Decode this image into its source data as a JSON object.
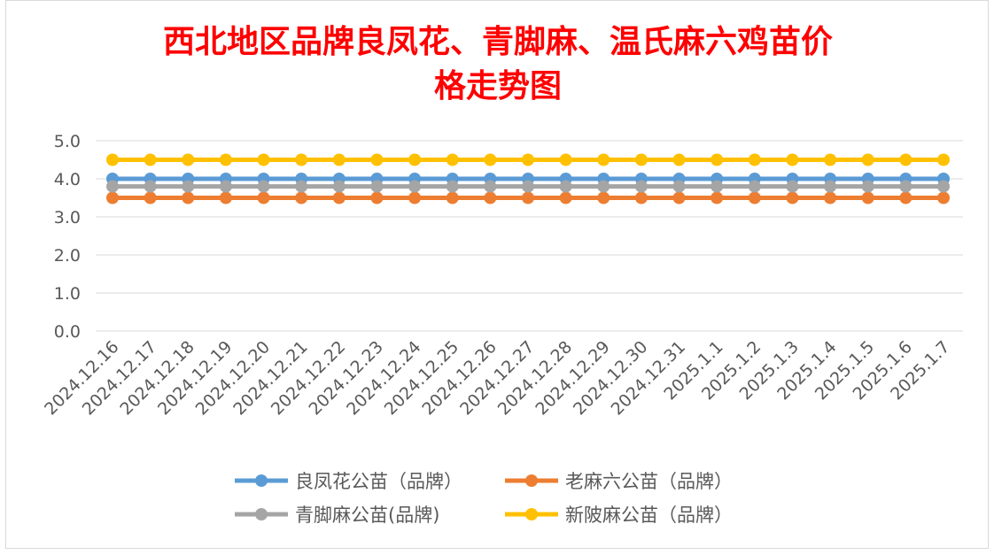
{
  "chart_data": {
    "type": "line",
    "title_line1": "西北地区品牌良凤花、青脚麻、温氏麻六鸡苗价",
    "title_line2": "格走势图",
    "ylim": [
      0,
      5
    ],
    "yticks": [
      "0.0",
      "1.0",
      "2.0",
      "3.0",
      "4.0",
      "5.0"
    ],
    "grid": true,
    "legend_position": "bottom",
    "categories": [
      "2024.12.16",
      "2024.12.17",
      "2024.12.18",
      "2024.12.19",
      "2024.12.20",
      "2024.12.21",
      "2024.12.22",
      "2024.12.23",
      "2024.12.24",
      "2024.12.25",
      "2024.12.26",
      "2024.12.27",
      "2024.12.28",
      "2024.12.29",
      "2024.12.30",
      "2024.12.31",
      "2025.1.1",
      "2025.1.2",
      "2025.1.3",
      "2025.1.4",
      "2025.1.5",
      "2025.1.6",
      "2025.1.7"
    ],
    "series": [
      {
        "name": "良凤花公苗（品牌）",
        "color": "#5b9bd5",
        "values": [
          4.0,
          4.0,
          4.0,
          4.0,
          4.0,
          4.0,
          4.0,
          4.0,
          4.0,
          4.0,
          4.0,
          4.0,
          4.0,
          4.0,
          4.0,
          4.0,
          4.0,
          4.0,
          4.0,
          4.0,
          4.0,
          4.0,
          4.0
        ]
      },
      {
        "name": "老麻六公苗（品牌）",
        "color": "#ed7d31",
        "values": [
          3.5,
          3.5,
          3.5,
          3.5,
          3.5,
          3.5,
          3.5,
          3.5,
          3.5,
          3.5,
          3.5,
          3.5,
          3.5,
          3.5,
          3.5,
          3.5,
          3.5,
          3.5,
          3.5,
          3.5,
          3.5,
          3.5,
          3.5
        ]
      },
      {
        "name": "青脚麻公苗(品牌)",
        "color": "#a5a5a5",
        "values": [
          3.8,
          3.8,
          3.8,
          3.8,
          3.8,
          3.8,
          3.8,
          3.8,
          3.8,
          3.8,
          3.8,
          3.8,
          3.8,
          3.8,
          3.8,
          3.8,
          3.8,
          3.8,
          3.8,
          3.8,
          3.8,
          3.8,
          3.8
        ]
      },
      {
        "name": "新陂麻公苗（品牌）",
        "color": "#ffc000",
        "values": [
          4.5,
          4.5,
          4.5,
          4.5,
          4.5,
          4.5,
          4.5,
          4.5,
          4.5,
          4.5,
          4.5,
          4.5,
          4.5,
          4.5,
          4.5,
          4.5,
          4.5,
          4.5,
          4.5,
          4.5,
          4.5,
          4.5,
          4.5
        ]
      }
    ]
  }
}
